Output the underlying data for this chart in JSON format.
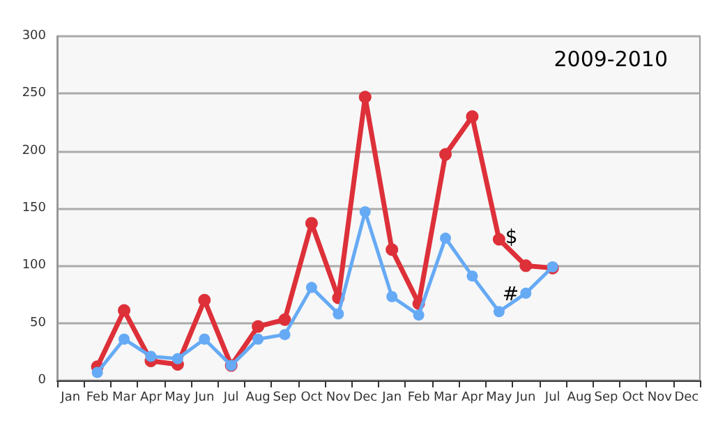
{
  "chart_data": {
    "type": "line",
    "title": "2009-2010",
    "categories": [
      "Jan",
      "Feb",
      "Mar",
      "Apr",
      "May",
      "Jun",
      "Jul",
      "Aug",
      "Sep",
      "Oct",
      "Nov",
      "Dec",
      "Jan",
      "Feb",
      "Mar",
      "Apr",
      "May",
      "Jun",
      "Jul",
      "Aug",
      "Sep",
      "Oct",
      "Nov",
      "Dec"
    ],
    "series": [
      {
        "name": "#",
        "color": "#66aaf5",
        "values": [
          null,
          7,
          36,
          21,
          19,
          36,
          13,
          36,
          40,
          81,
          58,
          147,
          73,
          57,
          124,
          91,
          60,
          76,
          99,
          null,
          null,
          null,
          null,
          null
        ]
      },
      {
        "name": "$",
        "color": "#dd3039",
        "values": [
          null,
          12,
          61,
          17,
          14,
          70,
          13,
          47,
          53,
          137,
          72,
          247,
          114,
          67,
          197,
          230,
          123,
          100,
          98,
          null,
          null,
          null,
          null,
          null
        ]
      }
    ],
    "ylim": [
      0,
      300
    ],
    "yticks": [
      0,
      50,
      100,
      150,
      200,
      250,
      300
    ],
    "grid": "y",
    "legend": false,
    "marker": "circle",
    "line_style": "solid"
  }
}
